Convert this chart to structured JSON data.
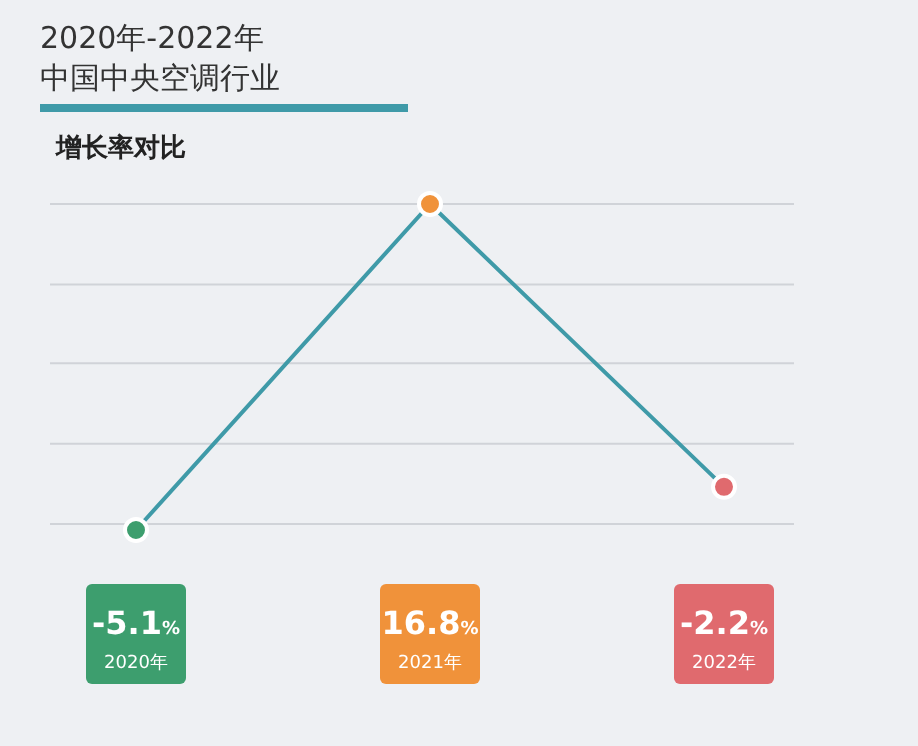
{
  "chart_data": {
    "type": "line",
    "title": "2020年-2022年",
    "subtitle": "中国中央空调行业",
    "annotations": [
      "增长率对比"
    ],
    "categories": [
      "2020年",
      "2021年",
      "2022年"
    ],
    "series": [
      {
        "color": "#3f9aa8",
        "colors": [
          "#3d9e6e",
          "#f0923a",
          "#e06a6e"
        ],
        "values": [
          -5.1,
          16.8,
          -2.2
        ],
        "value_labels": [
          "-5.1%",
          "16.8%",
          "-2.2%"
        ]
      }
    ],
    "yticks": [
      {
        "value": -4.7,
        "label": null
      },
      {
        "value": 0.7,
        "label": null
      },
      {
        "value": 6.1,
        "label": null
      },
      {
        "value": 11.4,
        "label": null
      },
      {
        "value": 16.8,
        "label": null
      }
    ],
    "grid": "y",
    "marker": "circle",
    "line_style": "solid"
  }
}
